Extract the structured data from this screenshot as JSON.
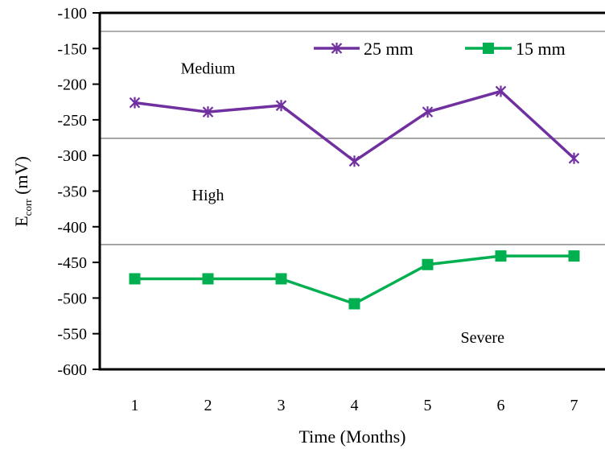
{
  "chart_data": {
    "type": "line",
    "x": [
      1,
      2,
      3,
      4,
      5,
      6,
      7
    ],
    "xticklabels": [
      "1",
      "2",
      "3",
      "4",
      "5",
      "6",
      "7"
    ],
    "xlabel": "Time (Months)",
    "ylabel": {
      "main": "E",
      "sub": "corr",
      "unit": " (mV)"
    },
    "ylim": [
      -600,
      -100
    ],
    "yticks": [
      -100,
      -150,
      -200,
      -250,
      -300,
      -350,
      -400,
      -450,
      -500,
      -550,
      -600
    ],
    "yticklabels": [
      "-100",
      "-150",
      "-200",
      "-250",
      "-300",
      "-350",
      "-400",
      "-450",
      "-500",
      "-550",
      "-600"
    ],
    "grid": false,
    "legend": "top-right",
    "series": [
      {
        "name": "25 mm",
        "color": "#7030a0",
        "marker": "asterisk",
        "values": [
          -226,
          -239,
          -230,
          -308,
          -239,
          -210,
          -304
        ]
      },
      {
        "name": "15 mm",
        "color": "#00b050",
        "marker": "square",
        "values": [
          -473,
          -473,
          -473,
          -508,
          -453,
          -441,
          -441
        ]
      }
    ],
    "reference_lines": [
      -126,
      -276,
      -425
    ],
    "zones": [
      {
        "label": "Medium",
        "y": -185,
        "x": 2.0
      },
      {
        "label": "High",
        "y": -363,
        "x": 2.0
      },
      {
        "label": "Severe",
        "y": -563,
        "x": 5.75
      }
    ]
  }
}
